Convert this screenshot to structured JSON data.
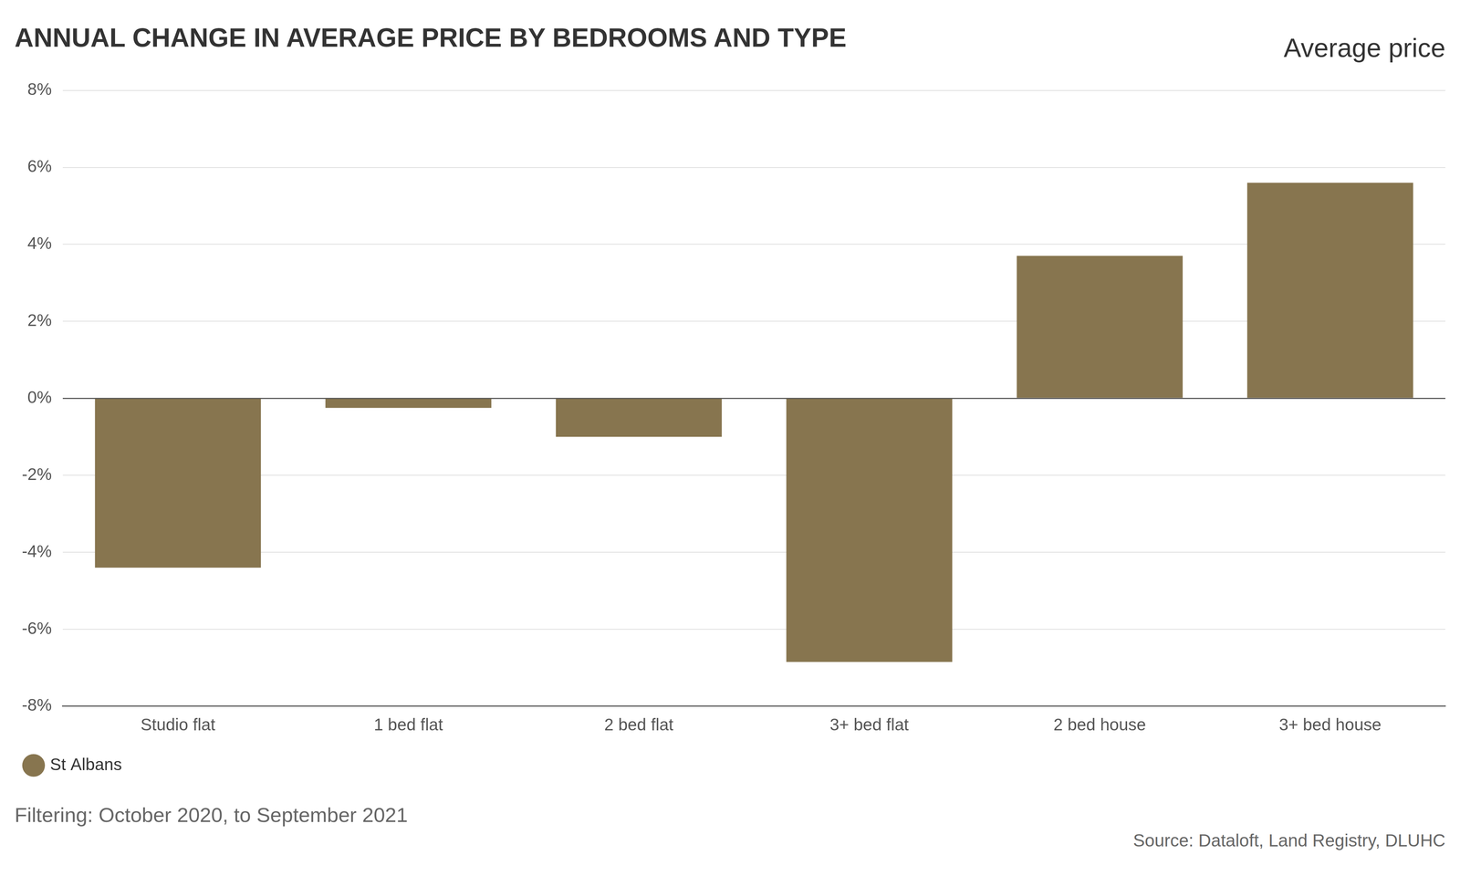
{
  "chart_data": {
    "type": "bar",
    "title": "ANNUAL CHANGE IN AVERAGE PRICE BY BEDROOMS AND TYPE",
    "subtitle": "Average price",
    "caption": "Filtering: October 2020, to September 2021",
    "source": "Source: Dataloft, Land Registry, DLUHC",
    "categories": [
      "Studio flat",
      "1 bed flat",
      "2 bed flat",
      "3+ bed flat",
      "2 bed house",
      "3+ bed house"
    ],
    "series": [
      {
        "name": "St Albans",
        "color": "#87754f",
        "values": [
          -4.4,
          -0.25,
          -1.0,
          -6.85,
          3.7,
          5.6
        ]
      }
    ],
    "ylim": [
      -8,
      8
    ],
    "yticks": [
      {
        "value": -8,
        "label": "-8%"
      },
      {
        "value": -6,
        "label": "-6%"
      },
      {
        "value": -4,
        "label": "-4%"
      },
      {
        "value": -2,
        "label": "-2%"
      },
      {
        "value": 0,
        "label": "0%"
      },
      {
        "value": 2,
        "label": "2%"
      },
      {
        "value": 4,
        "label": "4%"
      },
      {
        "value": 6,
        "label": "6%"
      },
      {
        "value": 8,
        "label": "8%"
      }
    ],
    "grid": true,
    "legend": "bottom left"
  }
}
